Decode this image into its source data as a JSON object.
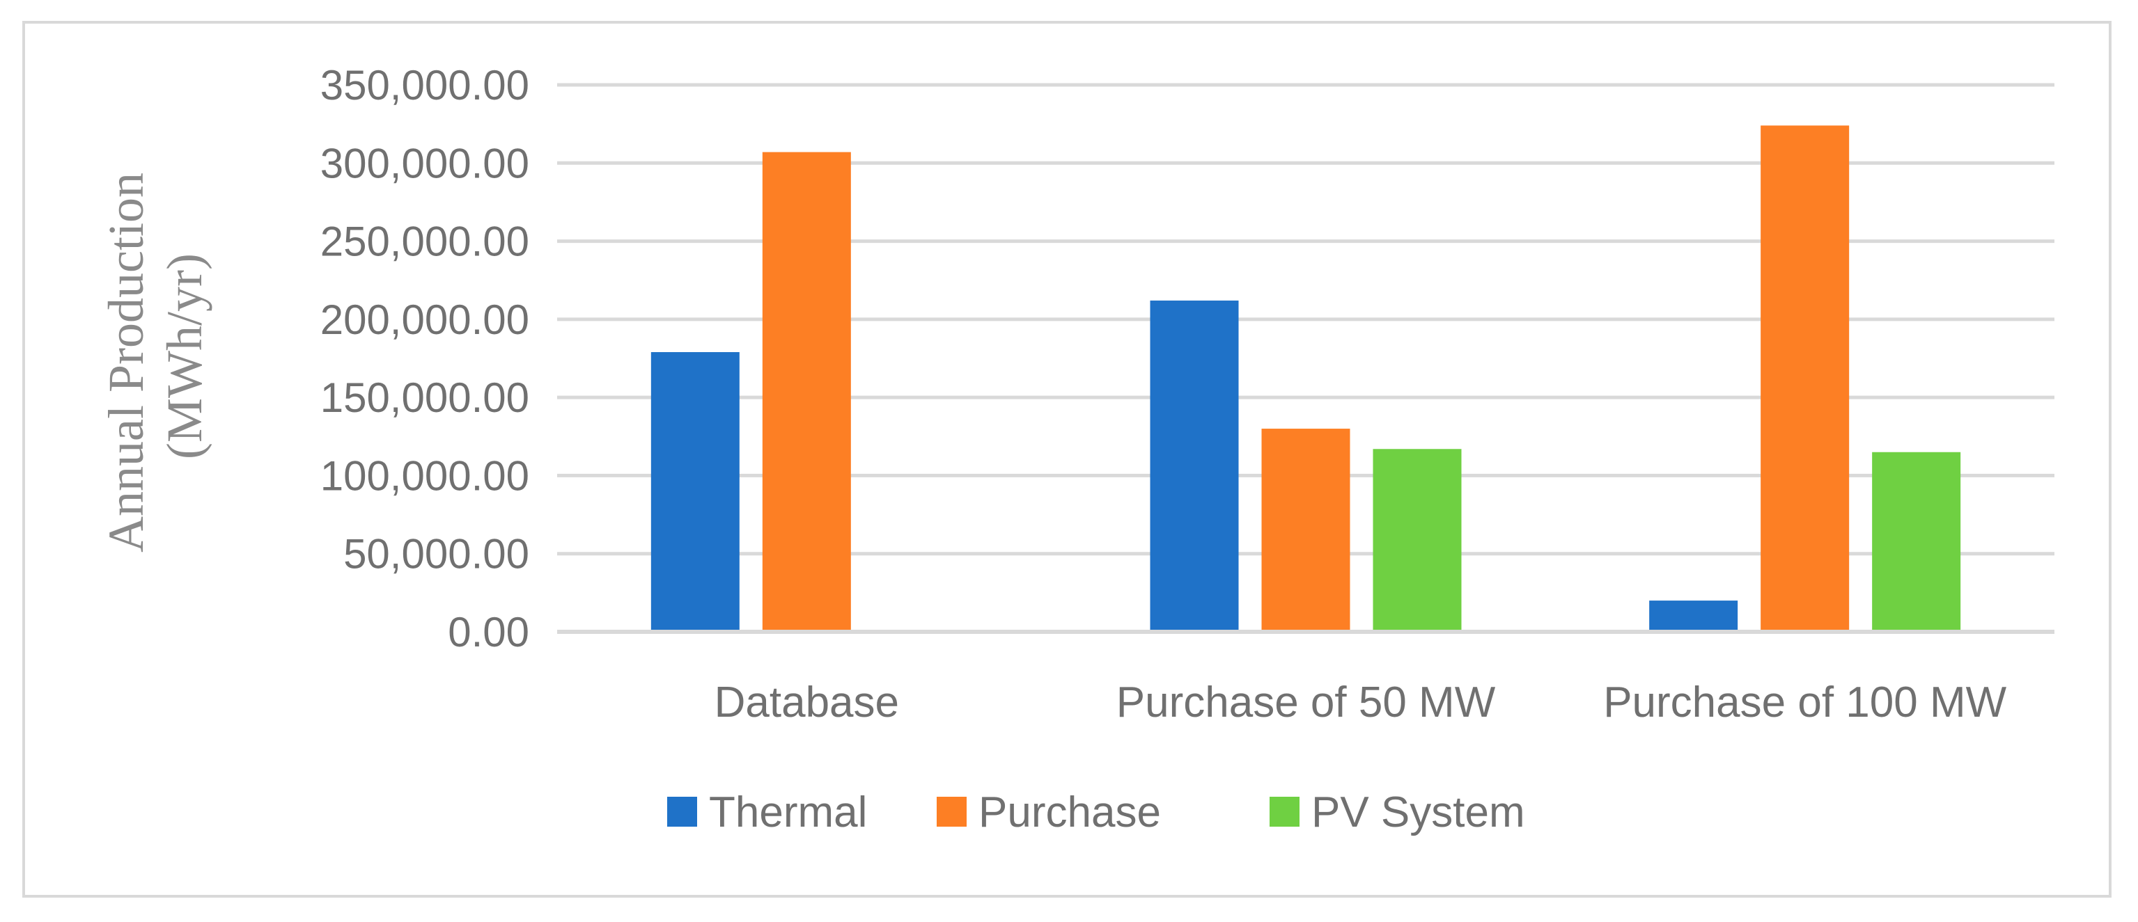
{
  "chart_data": {
    "type": "bar",
    "title": "",
    "xlabel": "",
    "ylabel": [
      "Annual Production",
      "(MWh/yr)"
    ],
    "categories": [
      "Database",
      "Purchase of 50 MW",
      "Purchase of 100 MW"
    ],
    "series": [
      {
        "name": "Thermal",
        "color": "#1f72c8",
        "values": [
          179000,
          212000,
          20000
        ]
      },
      {
        "name": "Purchase",
        "color": "#fd7f24",
        "values": [
          307000,
          130000,
          324000
        ]
      },
      {
        "name": "PV System",
        "color": "#6fd042",
        "values": [
          null,
          117000,
          115000
        ]
      }
    ],
    "ylim": [
      0,
      350000
    ],
    "yticks": [
      0,
      50000,
      100000,
      150000,
      200000,
      250000,
      300000,
      350000
    ],
    "ytick_labels": [
      "0.00",
      "50,000.00",
      "100,000.00",
      "150,000.00",
      "200,000.00",
      "250,000.00",
      "300,000.00",
      "350,000.00"
    ],
    "grid": true,
    "legend_position": "bottom-center"
  }
}
